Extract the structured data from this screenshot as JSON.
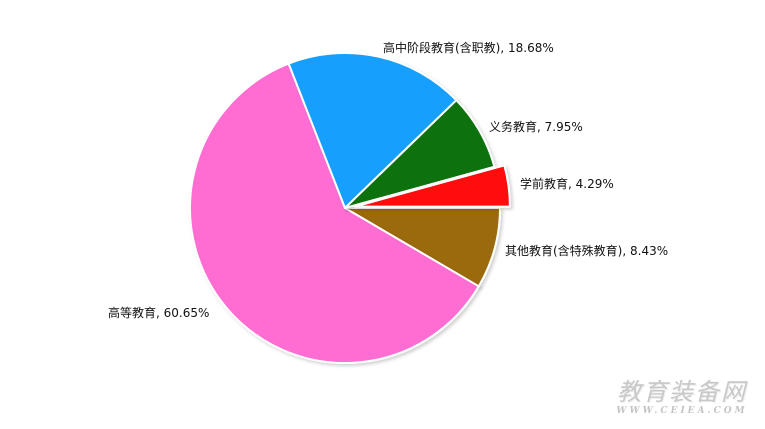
{
  "chart_data": {
    "type": "pie",
    "title": "",
    "slices": [
      {
        "label": "其他教育(含特殊教育)",
        "value": 8.43,
        "display": "其他教育(含特殊教育), 8.43%",
        "color": "#9b6b0f",
        "exploded": false
      },
      {
        "label": "高等教育",
        "value": 60.65,
        "display": "高等教育, 60.65%",
        "color": "#ff6dd3",
        "exploded": false
      },
      {
        "label": "高中阶段教育(含职教)",
        "value": 18.68,
        "display": "高中阶段教育(含职教), 18.68%",
        "color": "#149ffc",
        "exploded": false
      },
      {
        "label": "义务教育",
        "value": 7.95,
        "display": "义务教育, 7.95%",
        "color": "#0b720b",
        "exploded": false
      },
      {
        "label": "学前教育",
        "value": 4.29,
        "display": "学前教育, 4.29%",
        "color": "#ff0a0a",
        "exploded": true
      }
    ]
  },
  "watermark": {
    "chinese": "教育装备网",
    "url": "WWW.CEIEA.COM"
  }
}
